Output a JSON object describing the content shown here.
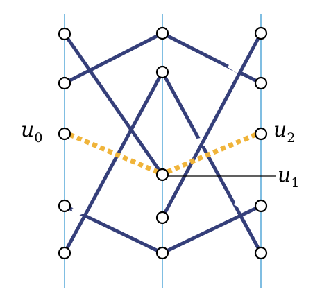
{
  "labels": {
    "u0": {
      "base": "u",
      "sub": "0"
    },
    "u1": {
      "base": "u",
      "sub": "1"
    },
    "u2": {
      "base": "u",
      "sub": "2"
    }
  },
  "colors": {
    "edge": "#353f7a",
    "highlight": "#f0b43a",
    "guide": "#4aa3d6",
    "node_fill": "#ffffff",
    "node_stroke": "#000000"
  }
}
